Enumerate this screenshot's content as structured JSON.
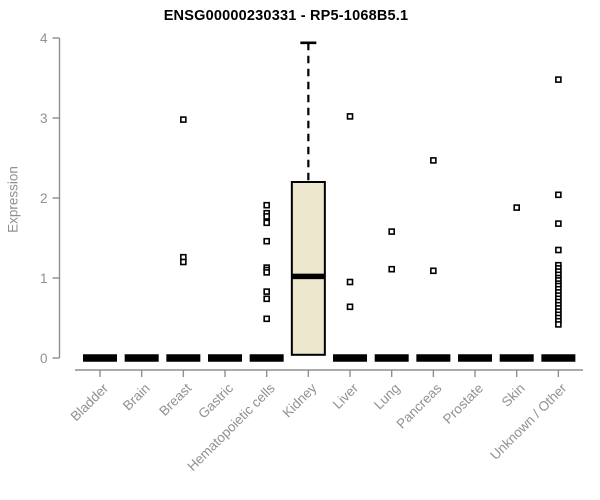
{
  "chart_data": {
    "type": "boxplot",
    "title": "ENSG00000230331 - RP5-1068B5.1",
    "ylabel": "Expression",
    "xlabel": "",
    "ylim": [
      0,
      4
    ],
    "yticks": [
      0,
      1,
      2,
      3,
      4
    ],
    "grid": false,
    "legend": "none",
    "colors": {
      "box_fill": "#ece7cd",
      "box_stroke": "#000000",
      "median": "#000000",
      "axis": "#8f8f8f",
      "tick_label": "#919191",
      "title": "#000000",
      "outlier_fill": "#ffffff",
      "outlier_stroke": "#000000"
    },
    "categories": [
      "Bladder",
      "Brain",
      "Breast",
      "Gastric",
      "Hematopoietic cells",
      "Kidney",
      "Liver",
      "Lung",
      "Pancreas",
      "Prostate",
      "Skin",
      "Unknown / Other"
    ],
    "boxes": [
      {
        "label": "Bladder",
        "lo": 0,
        "q1": 0,
        "med": 0,
        "q3": 0,
        "hi": 0,
        "outliers": []
      },
      {
        "label": "Brain",
        "lo": 0,
        "q1": 0,
        "med": 0,
        "q3": 0,
        "hi": 0,
        "outliers": []
      },
      {
        "label": "Breast",
        "lo": 0,
        "q1": 0,
        "med": 0,
        "q3": 0,
        "hi": 0,
        "outliers": [
          2.98,
          1.26,
          1.2
        ]
      },
      {
        "label": "Gastric",
        "lo": 0,
        "q1": 0,
        "med": 0,
        "q3": 0,
        "hi": 0,
        "outliers": []
      },
      {
        "label": "Hematopoietic cells",
        "lo": 0,
        "q1": 0,
        "med": 0,
        "q3": 0,
        "hi": 0,
        "outliers": [
          1.91,
          1.81,
          1.77,
          1.69,
          1.46,
          1.13,
          1.1,
          1.07,
          0.83,
          0.74,
          0.49
        ]
      },
      {
        "label": "Kidney",
        "lo": 0.04,
        "q1": 0.04,
        "med": 1.02,
        "q3": 2.2,
        "hi": 3.94,
        "outliers": []
      },
      {
        "label": "Liver",
        "lo": 0,
        "q1": 0,
        "med": 0,
        "q3": 0,
        "hi": 0,
        "outliers": [
          3.02,
          0.95,
          0.64
        ]
      },
      {
        "label": "Lung",
        "lo": 0,
        "q1": 0,
        "med": 0,
        "q3": 0,
        "hi": 0,
        "outliers": [
          1.58,
          1.11
        ]
      },
      {
        "label": "Pancreas",
        "lo": 0,
        "q1": 0,
        "med": 0,
        "q3": 0,
        "hi": 0,
        "outliers": [
          2.47,
          1.09
        ]
      },
      {
        "label": "Prostate",
        "lo": 0,
        "q1": 0,
        "med": 0,
        "q3": 0,
        "hi": 0,
        "outliers": []
      },
      {
        "label": "Skin",
        "lo": 0,
        "q1": 0,
        "med": 0,
        "q3": 0,
        "hi": 0,
        "outliers": [
          1.88
        ]
      },
      {
        "label": "Unknown / Other",
        "lo": 0,
        "q1": 0,
        "med": 0,
        "q3": 0,
        "hi": 0,
        "outliers": [
          3.48,
          2.04,
          1.68,
          1.35,
          1.16,
          1.12,
          1.08,
          1.04,
          1.0,
          0.97,
          0.93,
          0.9,
          0.86,
          0.82,
          0.78,
          0.74,
          0.7,
          0.66,
          0.62,
          0.58,
          0.54,
          0.5,
          0.46,
          0.42
        ]
      }
    ]
  }
}
